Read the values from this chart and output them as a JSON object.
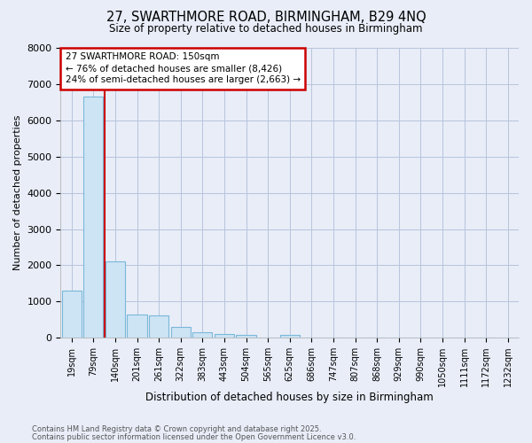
{
  "title_line1": "27, SWARTHMORE ROAD, BIRMINGHAM, B29 4NQ",
  "title_line2": "Size of property relative to detached houses in Birmingham",
  "xlabel": "Distribution of detached houses by size in Birmingham",
  "ylabel": "Number of detached properties",
  "categories": [
    "19sqm",
    "79sqm",
    "140sqm",
    "201sqm",
    "261sqm",
    "322sqm",
    "383sqm",
    "443sqm",
    "504sqm",
    "565sqm",
    "625sqm",
    "686sqm",
    "747sqm",
    "807sqm",
    "868sqm",
    "929sqm",
    "990sqm",
    "1050sqm",
    "1111sqm",
    "1172sqm",
    "1232sqm"
  ],
  "values": [
    1300,
    6650,
    2100,
    650,
    620,
    300,
    150,
    100,
    70,
    0,
    70,
    0,
    0,
    0,
    0,
    0,
    0,
    0,
    0,
    0,
    0
  ],
  "bar_color": "#cde4f5",
  "bar_edge_color": "#7ab8d9",
  "vline_x": 1.5,
  "vline_color": "#cc0000",
  "annotation_text": "27 SWARTHMORE ROAD: 150sqm\n← 76% of detached houses are smaller (8,426)\n24% of semi-detached houses are larger (2,663) →",
  "annotation_box_color": "white",
  "annotation_box_edge_color": "#cc0000",
  "ylim": [
    0,
    8000
  ],
  "yticks": [
    0,
    1000,
    2000,
    3000,
    4000,
    5000,
    6000,
    7000,
    8000
  ],
  "footer_line1": "Contains HM Land Registry data © Crown copyright and database right 2025.",
  "footer_line2": "Contains public sector information licensed under the Open Government Licence v3.0.",
  "bg_color": "#e8edf8",
  "plot_bg_color": "#e8edf8",
  "grid_color": "#b8c4dc"
}
